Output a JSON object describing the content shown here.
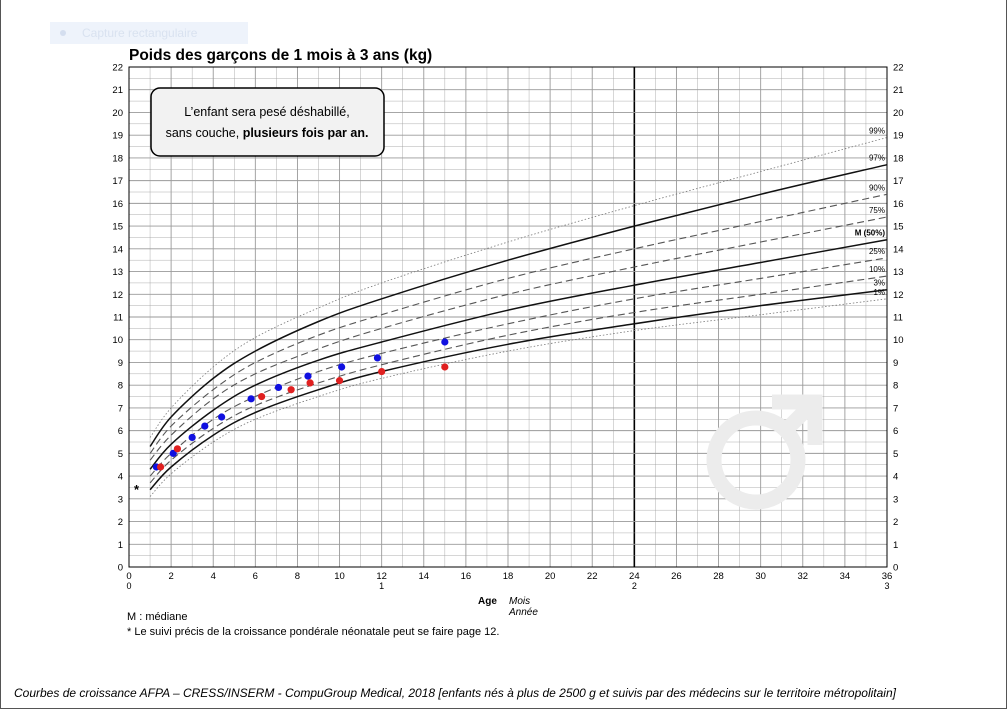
{
  "capture_badge": "Capture rectangulaire",
  "legend": {
    "median": "M : médiane",
    "note": "* Le suivi précis de la croissance pondérale néonatale peut se faire page 12."
  },
  "footer": "Courbes de croissance  AFPA – CRESS/INSERM - CompuGroup Medical, 2018 [enfants nés à plus de 2500 g et suivis par des médecins sur le territoire métropolitain]",
  "callout": {
    "line1": "L’enfant sera pesé déshabillé,",
    "line2_normal": "sans couche, ",
    "line2_bold": "plusieurs fois par an."
  },
  "chart_data": {
    "type": "line",
    "title": "Poids des garçons de 1 mois à 3 ans (kg)",
    "xlim": [
      0,
      36
    ],
    "ylim": [
      0,
      22
    ],
    "grid": true,
    "x_ticks_months": [
      0,
      2,
      4,
      6,
      8,
      10,
      12,
      14,
      16,
      18,
      20,
      22,
      24,
      26,
      28,
      30,
      32,
      34,
      36
    ],
    "x_ticks_years": [
      {
        "x": 0,
        "label": "0"
      },
      {
        "x": 12,
        "label": "1"
      },
      {
        "x": 24,
        "label": "2"
      },
      {
        "x": 36,
        "label": "3"
      }
    ],
    "y_ticks": [
      0,
      1,
      2,
      3,
      4,
      5,
      6,
      7,
      8,
      9,
      10,
      11,
      12,
      13,
      14,
      15,
      16,
      17,
      18,
      19,
      20,
      21,
      22
    ],
    "xlabel": "Age",
    "xunit_months": "Mois",
    "xunit_years": "Année",
    "asterisk": "*",
    "curves": [
      {
        "label": "1%",
        "style": "dotted",
        "points": [
          [
            1,
            3.1
          ],
          [
            2,
            4.1
          ],
          [
            4,
            5.5
          ],
          [
            6,
            6.5
          ],
          [
            9,
            7.5
          ],
          [
            12,
            8.3
          ],
          [
            18,
            9.5
          ],
          [
            24,
            10.4
          ],
          [
            30,
            11.1
          ],
          [
            36,
            11.8
          ]
        ]
      },
      {
        "label": "3%",
        "style": "solid",
        "points": [
          [
            1,
            3.4
          ],
          [
            2,
            4.4
          ],
          [
            4,
            5.8
          ],
          [
            6,
            6.8
          ],
          [
            9,
            7.8
          ],
          [
            12,
            8.6
          ],
          [
            18,
            9.8
          ],
          [
            24,
            10.7
          ],
          [
            30,
            11.5
          ],
          [
            36,
            12.2
          ]
        ]
      },
      {
        "label": "10%",
        "style": "dashed",
        "points": [
          [
            1,
            3.7
          ],
          [
            2,
            4.7
          ],
          [
            4,
            6.1
          ],
          [
            6,
            7.1
          ],
          [
            9,
            8.1
          ],
          [
            12,
            8.9
          ],
          [
            18,
            10.2
          ],
          [
            24,
            11.2
          ],
          [
            30,
            12.0
          ],
          [
            36,
            12.8
          ]
        ]
      },
      {
        "label": "25%",
        "style": "dashed",
        "points": [
          [
            1,
            4.0
          ],
          [
            2,
            5.0
          ],
          [
            4,
            6.5
          ],
          [
            6,
            7.5
          ],
          [
            9,
            8.6
          ],
          [
            12,
            9.4
          ],
          [
            18,
            10.7
          ],
          [
            24,
            11.8
          ],
          [
            30,
            12.7
          ],
          [
            36,
            13.6
          ]
        ]
      },
      {
        "label": "M (50%)",
        "style": "solid",
        "points": [
          [
            1,
            4.3
          ],
          [
            2,
            5.4
          ],
          [
            4,
            6.9
          ],
          [
            6,
            8.0
          ],
          [
            9,
            9.1
          ],
          [
            12,
            9.9
          ],
          [
            18,
            11.3
          ],
          [
            24,
            12.4
          ],
          [
            30,
            13.4
          ],
          [
            36,
            14.4
          ]
        ]
      },
      {
        "label": "75%",
        "style": "dashed",
        "points": [
          [
            1,
            4.7
          ],
          [
            2,
            5.8
          ],
          [
            4,
            7.4
          ],
          [
            6,
            8.5
          ],
          [
            9,
            9.6
          ],
          [
            12,
            10.5
          ],
          [
            18,
            12.0
          ],
          [
            24,
            13.2
          ],
          [
            30,
            14.3
          ],
          [
            36,
            15.4
          ]
        ]
      },
      {
        "label": "90%",
        "style": "dashed",
        "points": [
          [
            1,
            5.0
          ],
          [
            2,
            6.2
          ],
          [
            4,
            7.8
          ],
          [
            6,
            9.0
          ],
          [
            9,
            10.2
          ],
          [
            12,
            11.1
          ],
          [
            18,
            12.7
          ],
          [
            24,
            14.0
          ],
          [
            30,
            15.2
          ],
          [
            36,
            16.4
          ]
        ]
      },
      {
        "label": "97%",
        "style": "solid",
        "points": [
          [
            1,
            5.3
          ],
          [
            2,
            6.6
          ],
          [
            4,
            8.3
          ],
          [
            6,
            9.5
          ],
          [
            9,
            10.8
          ],
          [
            12,
            11.8
          ],
          [
            18,
            13.5
          ],
          [
            24,
            15.0
          ],
          [
            30,
            16.4
          ],
          [
            36,
            17.7
          ]
        ]
      },
      {
        "label": "99%",
        "style": "dotted",
        "points": [
          [
            1,
            5.7
          ],
          [
            2,
            7.0
          ],
          [
            4,
            8.8
          ],
          [
            6,
            10.1
          ],
          [
            9,
            11.4
          ],
          [
            12,
            12.5
          ],
          [
            18,
            14.3
          ],
          [
            24,
            15.9
          ],
          [
            30,
            17.4
          ],
          [
            36,
            18.9
          ]
        ]
      }
    ],
    "series": [
      {
        "color": "#1010e0",
        "points": [
          [
            1.3,
            4.4
          ],
          [
            2.1,
            5.0
          ],
          [
            3.0,
            5.7
          ],
          [
            3.6,
            6.2
          ],
          [
            4.4,
            6.6
          ],
          [
            5.8,
            7.4
          ],
          [
            7.1,
            7.9
          ],
          [
            8.5,
            8.4
          ],
          [
            10.1,
            8.8
          ],
          [
            11.8,
            9.2
          ],
          [
            15.0,
            9.9
          ]
        ]
      },
      {
        "color": "#e02020",
        "points": [
          [
            1.5,
            4.4
          ],
          [
            2.3,
            5.2
          ],
          [
            6.3,
            7.5
          ],
          [
            7.7,
            7.8
          ],
          [
            8.6,
            8.1
          ],
          [
            10.0,
            8.2
          ],
          [
            12.0,
            8.6
          ],
          [
            15.0,
            8.8
          ]
        ]
      }
    ]
  },
  "colors": {
    "grid": "#9a9a9a",
    "curve": "#222222",
    "male_symbol": "#ececec"
  },
  "icons": {
    "watermark": "male-symbol-icon"
  }
}
